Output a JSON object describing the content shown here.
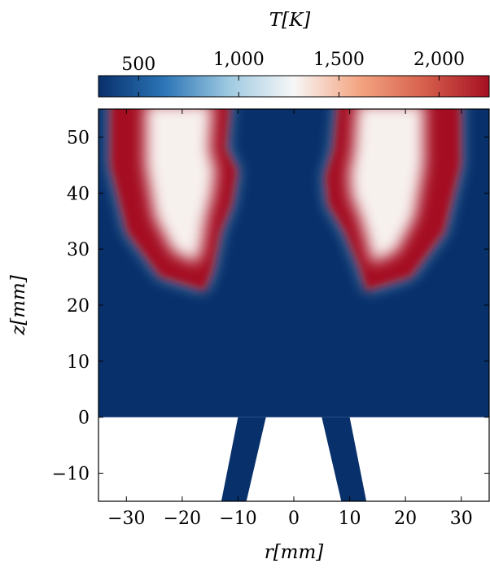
{
  "chart_data": {
    "type": "heatmap",
    "colorbar": {
      "label": "T[K]",
      "ticks": [
        500,
        1000,
        1500,
        2000
      ],
      "tick_labels": [
        "500",
        "1,000",
        "1,500",
        "2,000"
      ],
      "range": [
        300,
        2250
      ],
      "colormap": [
        "#08306b",
        "#2b74b6",
        "#9ecae1",
        "#f7f7f7",
        "#f4a582",
        "#d6604d",
        "#a50f22"
      ]
    },
    "x_axis": {
      "label": "r[mm]",
      "range": [
        -35,
        35
      ],
      "ticks": [
        -30,
        -20,
        -10,
        0,
        10,
        20,
        30
      ],
      "tick_labels": [
        "−30",
        "−20",
        "−10",
        "0",
        "10",
        "20",
        "30"
      ]
    },
    "y_axis": {
      "label": "z[mm]",
      "range": [
        -15,
        55
      ],
      "ticks": [
        -10,
        0,
        10,
        20,
        30,
        40,
        50
      ],
      "tick_labels": [
        "−10",
        "0",
        "10",
        "20",
        "30",
        "40",
        "50"
      ]
    },
    "domain": {
      "chamber": {
        "r": [
          -35,
          35
        ],
        "z": [
          0,
          55
        ],
        "ambient_temperature_K": 300
      },
      "nozzle_walls": [
        {
          "side": "left",
          "outline_rz": [
            [
              -10,
              0
            ],
            [
              -5,
              0
            ],
            [
              -8.5,
              -15
            ],
            [
              -13,
              -15
            ]
          ]
        },
        {
          "side": "right",
          "outline_rz": [
            [
              5,
              0
            ],
            [
              10,
              0
            ],
            [
              13,
              -15
            ],
            [
              8.5,
              -15
            ]
          ]
        }
      ]
    },
    "flame_regions": [
      {
        "side": "left",
        "peak_temperature_K": 2250,
        "core_temperature_K": 1300,
        "inner_edge_rz": [
          [
            -11,
            55
          ],
          [
            -12,
            48
          ],
          [
            -10,
            44
          ],
          [
            -11,
            38
          ],
          [
            -13,
            33
          ],
          [
            -14.5,
            26
          ],
          [
            -16,
            22.5
          ]
        ],
        "outer_edge_rz": [
          [
            -16,
            22.5
          ],
          [
            -24,
            25
          ],
          [
            -30,
            33
          ],
          [
            -33,
            45
          ],
          [
            -33,
            55
          ]
        ]
      },
      {
        "side": "right",
        "peak_temperature_K": 2250,
        "core_temperature_K": 1300,
        "inner_edge_rz": [
          [
            8,
            55
          ],
          [
            7,
            48
          ],
          [
            5.5,
            43
          ],
          [
            6,
            38
          ],
          [
            9,
            33
          ],
          [
            11.5,
            27
          ],
          [
            13,
            22.5
          ]
        ],
        "outer_edge_rz": [
          [
            13,
            22.5
          ],
          [
            21,
            25
          ],
          [
            27,
            33
          ],
          [
            30,
            45
          ],
          [
            30,
            55
          ]
        ]
      }
    ]
  }
}
